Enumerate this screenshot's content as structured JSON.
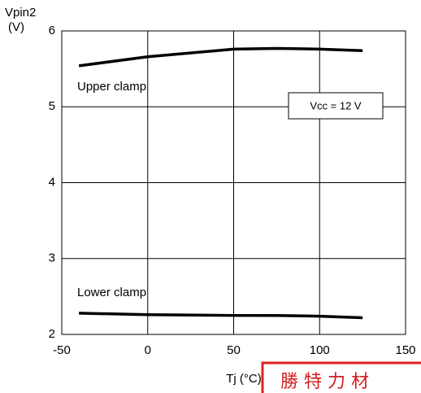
{
  "chart_data": {
    "type": "line",
    "ylabel": [
      "Vpin2",
      "(V)"
    ],
    "xlabel": "Tj  (°C)",
    "x": [
      -40,
      0,
      50,
      75,
      100,
      125
    ],
    "series": [
      {
        "name": "Upper clamp",
        "color": "#000000",
        "values": [
          5.54,
          5.66,
          5.76,
          5.77,
          5.76,
          5.74
        ]
      },
      {
        "name": "Lower clamp",
        "color": "#000000",
        "values": [
          2.28,
          2.26,
          2.25,
          2.25,
          2.24,
          2.22
        ]
      }
    ],
    "annotation": "Vcc = 12 V",
    "banner": "勝 特 力 材",
    "xlim": [
      -50,
      150
    ],
    "xticks": [
      -50,
      0,
      50,
      100,
      150
    ],
    "ylim": [
      2,
      6
    ],
    "yticks": [
      2,
      3,
      4,
      5,
      6
    ],
    "grid": true
  }
}
